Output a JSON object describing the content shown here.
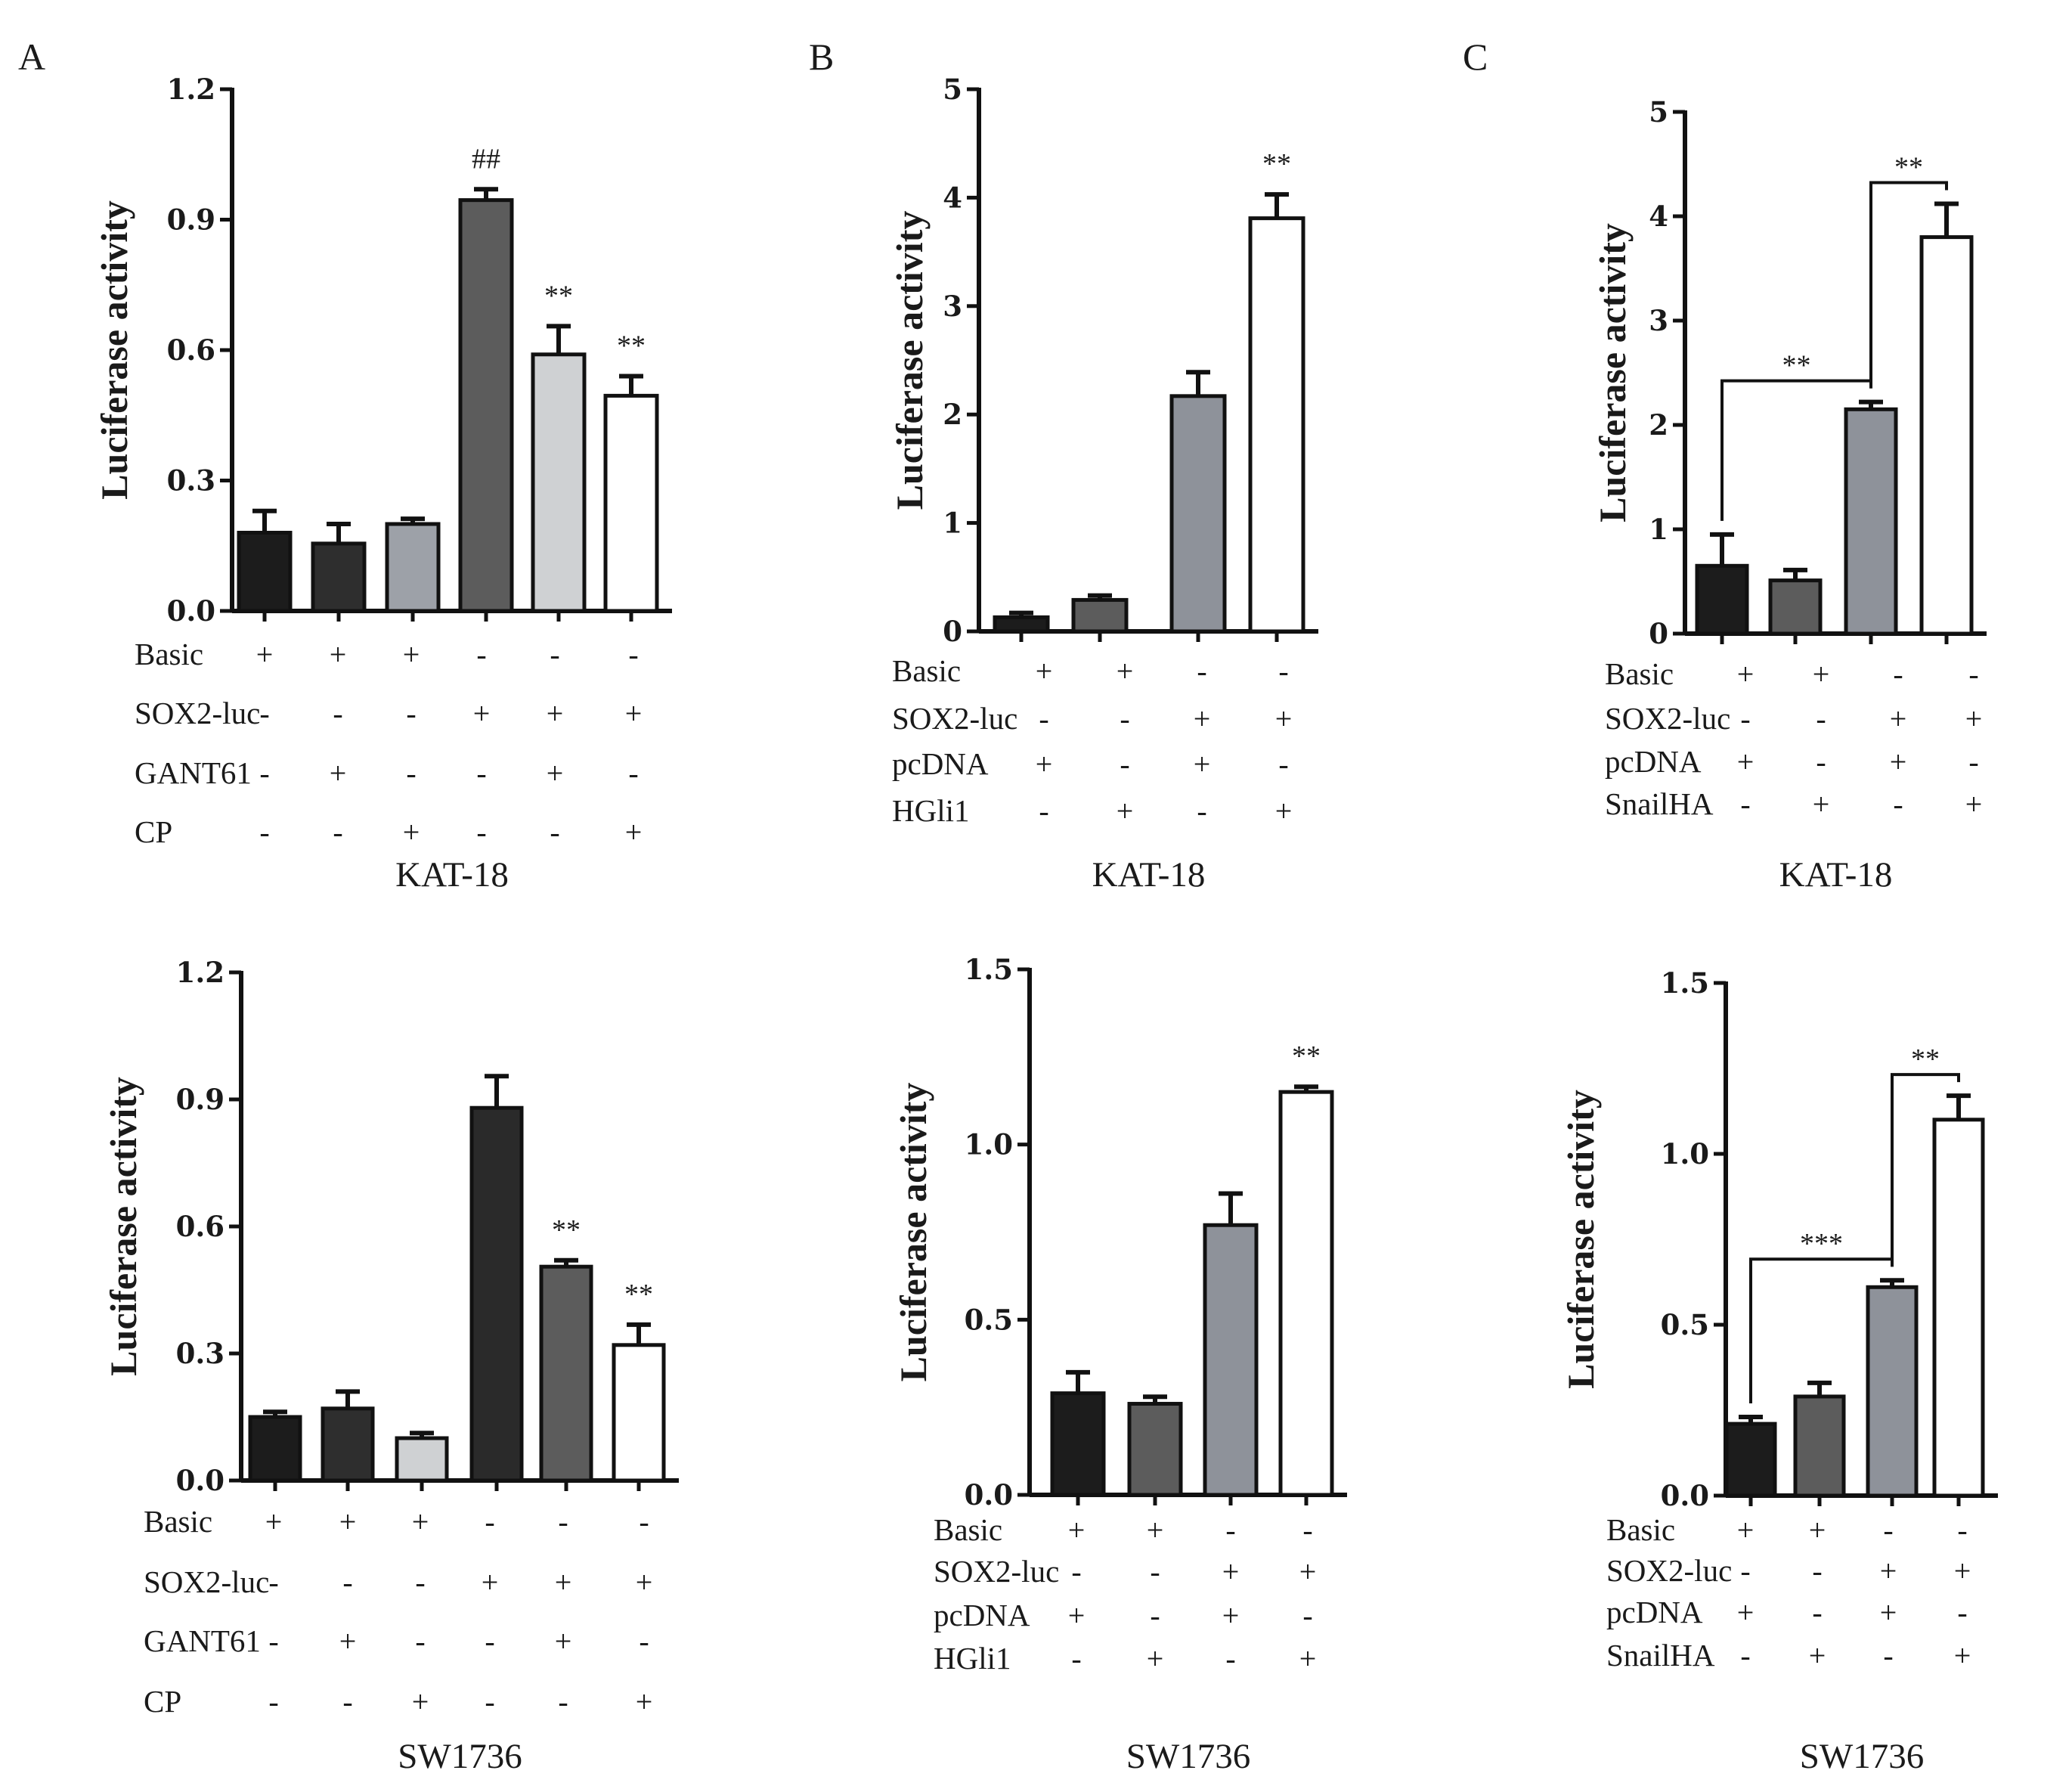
{
  "panel_labels": [
    "A",
    "B",
    "C"
  ],
  "chart_data": [
    {
      "type": "bar",
      "panel": "A",
      "cell_line": "KAT-18",
      "ylabel": "Luciferase  activity",
      "ylim": [
        0,
        1.2
      ],
      "yticks": [
        "0.0",
        "0.3",
        "0.6",
        "0.9",
        "1.2"
      ],
      "ytick_values": [
        0,
        0.3,
        0.6,
        0.9,
        1.2
      ],
      "values": [
        0.18,
        0.155,
        0.2,
        0.945,
        0.59,
        0.495
      ],
      "errors": [
        0.05,
        0.045,
        0.012,
        0.025,
        0.065,
        0.045
      ],
      "colors": [
        "#1c1c1c",
        "#2e2e2e",
        "#9da1a8",
        "#5c5c5c",
        "#cfd1d3",
        "#ffffff"
      ],
      "annotations": [
        "",
        "",
        "",
        "##",
        "**",
        "**"
      ],
      "brackets": [],
      "conditions": [
        {
          "label": "Basic",
          "signs": [
            "+",
            "+",
            "+",
            "-",
            "-",
            "-"
          ]
        },
        {
          "label": "SOX2-luc",
          "signs": [
            "-",
            "-",
            "-",
            "+",
            "+",
            "+"
          ]
        },
        {
          "label": "GANT61",
          "signs": [
            "-",
            "+",
            "-",
            "-",
            "+",
            "-"
          ]
        },
        {
          "label": "CP",
          "signs": [
            "-",
            "-",
            "+",
            "-",
            "-",
            "+"
          ]
        }
      ]
    },
    {
      "type": "bar",
      "panel": "B",
      "cell_line": "KAT-18",
      "ylabel": "Luciferase  activity",
      "ylim": [
        0,
        5
      ],
      "yticks": [
        "0",
        "1",
        "2",
        "3",
        "4",
        "5"
      ],
      "ytick_values": [
        0,
        1,
        2,
        3,
        4,
        5
      ],
      "values": [
        0.13,
        0.29,
        2.17,
        3.81
      ],
      "errors": [
        0.04,
        0.04,
        0.22,
        0.22
      ],
      "colors": [
        "#1c1c1c",
        "#5c5c5c",
        "#8e929a",
        "#ffffff"
      ],
      "annotations": [
        "",
        "",
        "",
        "**"
      ],
      "brackets": [],
      "conditions": [
        {
          "label": "Basic",
          "signs": [
            "+",
            "+",
            "-",
            "-"
          ]
        },
        {
          "label": "SOX2-luc",
          "signs": [
            "-",
            "-",
            "+",
            "+"
          ]
        },
        {
          "label": "pcDNA",
          "signs": [
            "+",
            "-",
            "+",
            "-"
          ]
        },
        {
          "label": "HGli1",
          "signs": [
            "-",
            "+",
            "-",
            "+"
          ]
        }
      ]
    },
    {
      "type": "bar",
      "panel": "C",
      "cell_line": "KAT-18",
      "ylabel": "Luciferase  activity",
      "ylim": [
        0,
        5
      ],
      "yticks": [
        "0",
        "1",
        "2",
        "3",
        "4",
        "5"
      ],
      "ytick_values": [
        0,
        1,
        2,
        3,
        4,
        5
      ],
      "values": [
        0.65,
        0.51,
        2.15,
        3.8
      ],
      "errors": [
        0.3,
        0.1,
        0.07,
        0.32
      ],
      "colors": [
        "#1c1c1c",
        "#5c5c5c",
        "#8e929a",
        "#ffffff"
      ],
      "annotations": [
        "",
        "",
        "",
        ""
      ],
      "brackets": [
        {
          "from": 0,
          "to": 2,
          "label": "**"
        },
        {
          "from": 2,
          "to": 3,
          "label": "**"
        }
      ],
      "conditions": [
        {
          "label": "Basic",
          "signs": [
            "+",
            "+",
            "-",
            "-"
          ]
        },
        {
          "label": "SOX2-luc",
          "signs": [
            "-",
            "-",
            "+",
            "+"
          ]
        },
        {
          "label": "pcDNA",
          "signs": [
            "+",
            "-",
            "+",
            "-"
          ]
        },
        {
          "label": "SnailHA",
          "signs": [
            "-",
            "+",
            "-",
            "+"
          ]
        }
      ]
    },
    {
      "type": "bar",
      "panel": "A",
      "cell_line": "SW1736",
      "ylabel": "Luciferase  activity",
      "ylim": [
        0,
        1.2
      ],
      "yticks": [
        "0.0",
        "0.3",
        "0.6",
        "0.9",
        "1.2"
      ],
      "ytick_values": [
        0,
        0.3,
        0.6,
        0.9,
        1.2
      ],
      "values": [
        0.15,
        0.17,
        0.1,
        0.88,
        0.505,
        0.32
      ],
      "errors": [
        0.012,
        0.04,
        0.012,
        0.075,
        0.015,
        0.048
      ],
      "colors": [
        "#1c1c1c",
        "#2e2e2e",
        "#cfd1d3",
        "#2a2a2a",
        "#5c5c5c",
        "#ffffff"
      ],
      "annotations": [
        "",
        "",
        "",
        "",
        "**",
        "**"
      ],
      "brackets": [],
      "conditions": [
        {
          "label": "Basic",
          "signs": [
            "+",
            "+",
            "+",
            "-",
            "-",
            "-"
          ]
        },
        {
          "label": "SOX2-luc",
          "signs": [
            "-",
            "-",
            "-",
            "+",
            "+",
            "+"
          ]
        },
        {
          "label": "GANT61",
          "signs": [
            "-",
            "+",
            "-",
            "-",
            "+",
            "-"
          ]
        },
        {
          "label": "CP",
          "signs": [
            "-",
            "-",
            "+",
            "-",
            "-",
            "+"
          ]
        }
      ]
    },
    {
      "type": "bar",
      "panel": "B",
      "cell_line": "SW1736",
      "ylabel": "Luciferase  activity",
      "ylim": [
        0,
        1.5
      ],
      "yticks": [
        "0.0",
        "0.5",
        "1.0",
        "1.5"
      ],
      "ytick_values": [
        0,
        0.5,
        1.0,
        1.5
      ],
      "values": [
        0.29,
        0.26,
        0.77,
        1.15
      ],
      "errors": [
        0.06,
        0.02,
        0.09,
        0.015
      ],
      "colors": [
        "#1c1c1c",
        "#5c5c5c",
        "#8e929a",
        "#ffffff"
      ],
      "annotations": [
        "",
        "",
        "",
        "**"
      ],
      "brackets": [],
      "conditions": [
        {
          "label": "Basic",
          "signs": [
            "+",
            "+",
            "-",
            "-"
          ]
        },
        {
          "label": "SOX2-luc",
          "signs": [
            "-",
            "-",
            "+",
            "+"
          ]
        },
        {
          "label": "pcDNA",
          "signs": [
            "+",
            "-",
            "+",
            "-"
          ]
        },
        {
          "label": "HGli1",
          "signs": [
            "-",
            "+",
            "-",
            "+"
          ]
        }
      ]
    },
    {
      "type": "bar",
      "panel": "C",
      "cell_line": "SW1736",
      "ylabel": "Luciferase  activity",
      "ylim": [
        0,
        1.5
      ],
      "yticks": [
        "0.0",
        "0.5",
        "1.0",
        "1.5"
      ],
      "ytick_values": [
        0,
        0.5,
        1.0,
        1.5
      ],
      "values": [
        0.21,
        0.29,
        0.61,
        1.1
      ],
      "errors": [
        0.02,
        0.04,
        0.02,
        0.07
      ],
      "colors": [
        "#1c1c1c",
        "#5c5c5c",
        "#8e929a",
        "#ffffff"
      ],
      "annotations": [
        "",
        "",
        "",
        ""
      ],
      "brackets": [
        {
          "from": 0,
          "to": 2,
          "label": "***"
        },
        {
          "from": 2,
          "to": 3,
          "label": "**"
        }
      ],
      "conditions": [
        {
          "label": "Basic",
          "signs": [
            "+",
            "+",
            "-",
            "-"
          ]
        },
        {
          "label": "SOX2-luc",
          "signs": [
            "-",
            "-",
            "+",
            "+"
          ]
        },
        {
          "label": "pcDNA",
          "signs": [
            "+",
            "-",
            "+",
            "-"
          ]
        },
        {
          "label": "SnailHA",
          "signs": [
            "-",
            "+",
            "-",
            "+"
          ]
        }
      ]
    }
  ]
}
